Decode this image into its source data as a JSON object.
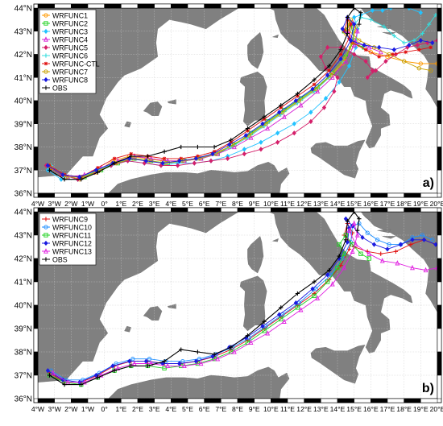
{
  "panels": [
    {
      "id": "a",
      "panel_label": "a)",
      "legend": [
        {
          "name": "WRFUNC1",
          "color": "#ff9900",
          "marker": "circle"
        },
        {
          "name": "WRFUNC2",
          "color": "#1fd11f",
          "marker": "square"
        },
        {
          "name": "WRFUNC3",
          "color": "#22c2ff",
          "marker": "diamond"
        },
        {
          "name": "WRFUNC4",
          "color": "#d51fd5",
          "marker": "triangle"
        },
        {
          "name": "WRFUNC5",
          "color": "#d51f6a",
          "marker": "diamond"
        },
        {
          "name": "WRFUNC6",
          "color": "#33dddd",
          "marker": "plus"
        },
        {
          "name": "WRFUNC-CTL",
          "color": "#e01010",
          "marker": "star"
        },
        {
          "name": "WRFUNC7",
          "color": "#c8a000",
          "marker": "circle"
        },
        {
          "name": "WRFUNC8",
          "color": "#1a1ae0",
          "marker": "diamond"
        },
        {
          "name": "OBS",
          "color": "#000000",
          "marker": "plus"
        }
      ]
    },
    {
      "id": "b",
      "panel_label": "b)",
      "legend": [
        {
          "name": "WRFUNC9",
          "color": "#e01010",
          "marker": "plus"
        },
        {
          "name": "WRFUNC10",
          "color": "#1f8fff",
          "marker": "circle"
        },
        {
          "name": "WRFUNC11",
          "color": "#1fd11f",
          "marker": "square"
        },
        {
          "name": "WRFUNC12",
          "color": "#1a1ae0",
          "marker": "diamond"
        },
        {
          "name": "WRFUNC13",
          "color": "#e01fe0",
          "marker": "triangle"
        },
        {
          "name": "OBS",
          "color": "#000000",
          "marker": "plus"
        }
      ]
    }
  ],
  "axes": {
    "x_ticks": [
      "4°W",
      "3°W",
      "2°W",
      "1°W",
      "0°",
      "1°E",
      "2°E",
      "3°E",
      "4°E",
      "5°E",
      "6°E",
      "7°E",
      "8°E",
      "9°E",
      "10°E",
      "11°E",
      "12°E",
      "13°E",
      "14°E",
      "15°E",
      "16°E",
      "17°E",
      "18°E",
      "19°E",
      "20°E"
    ],
    "y_ticks": [
      "36°N",
      "37°N",
      "38°N",
      "39°N",
      "40°N",
      "41°N",
      "42°N",
      "43°N",
      "44°N"
    ]
  },
  "colors": {
    "land": "#808080",
    "sea": "#ffffff",
    "grid": "#c8c8c8"
  }
}
